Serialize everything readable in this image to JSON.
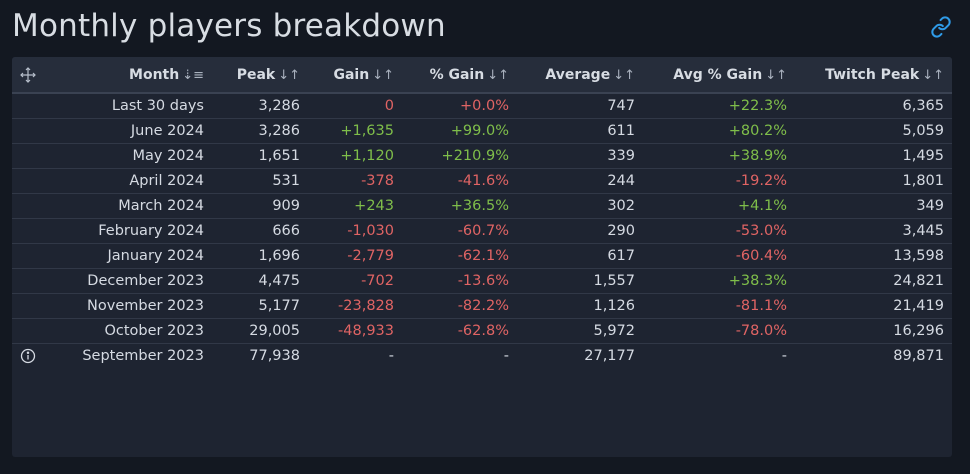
{
  "title": "Monthly players breakdown",
  "icons": {
    "link": "link-icon",
    "move": "move-icon",
    "info": "info-icon"
  },
  "colors": {
    "positive": "#7fbe4a",
    "negative": "#e06464",
    "link": "#2f9be8"
  },
  "table": {
    "headers": {
      "month": "Month",
      "peak": "Peak",
      "gain": "Gain",
      "pct_gain": "% Gain",
      "average": "Average",
      "avg_pct_gain": "Avg % Gain",
      "twitch_peak": "Twitch Peak"
    },
    "sort_glyphs": {
      "active": "⇣≡",
      "inactive": "↓↑"
    },
    "rows": [
      {
        "month": "Last 30 days",
        "peak": "3,286",
        "gain": "0",
        "gain_tone": "neg",
        "pct_gain": "+0.0%",
        "pct_tone": "neg",
        "average": "747",
        "avg_pct_gain": "+22.3%",
        "avg_tone": "pos",
        "twitch_peak": "6,365"
      },
      {
        "month": "June 2024",
        "peak": "3,286",
        "gain": "+1,635",
        "gain_tone": "pos",
        "pct_gain": "+99.0%",
        "pct_tone": "pos",
        "average": "611",
        "avg_pct_gain": "+80.2%",
        "avg_tone": "pos",
        "twitch_peak": "5,059"
      },
      {
        "month": "May 2024",
        "peak": "1,651",
        "gain": "+1,120",
        "gain_tone": "pos",
        "pct_gain": "+210.9%",
        "pct_tone": "pos",
        "average": "339",
        "avg_pct_gain": "+38.9%",
        "avg_tone": "pos",
        "twitch_peak": "1,495"
      },
      {
        "month": "April 2024",
        "peak": "531",
        "gain": "-378",
        "gain_tone": "neg",
        "pct_gain": "-41.6%",
        "pct_tone": "neg",
        "average": "244",
        "avg_pct_gain": "-19.2%",
        "avg_tone": "neg",
        "twitch_peak": "1,801"
      },
      {
        "month": "March 2024",
        "peak": "909",
        "gain": "+243",
        "gain_tone": "pos",
        "pct_gain": "+36.5%",
        "pct_tone": "pos",
        "average": "302",
        "avg_pct_gain": "+4.1%",
        "avg_tone": "pos",
        "twitch_peak": "349"
      },
      {
        "month": "February 2024",
        "peak": "666",
        "gain": "-1,030",
        "gain_tone": "neg",
        "pct_gain": "-60.7%",
        "pct_tone": "neg",
        "average": "290",
        "avg_pct_gain": "-53.0%",
        "avg_tone": "neg",
        "twitch_peak": "3,445"
      },
      {
        "month": "January 2024",
        "peak": "1,696",
        "gain": "-2,779",
        "gain_tone": "neg",
        "pct_gain": "-62.1%",
        "pct_tone": "neg",
        "average": "617",
        "avg_pct_gain": "-60.4%",
        "avg_tone": "neg",
        "twitch_peak": "13,598"
      },
      {
        "month": "December 2023",
        "peak": "4,475",
        "gain": "-702",
        "gain_tone": "neg",
        "pct_gain": "-13.6%",
        "pct_tone": "neg",
        "average": "1,557",
        "avg_pct_gain": "+38.3%",
        "avg_tone": "pos",
        "twitch_peak": "24,821"
      },
      {
        "month": "November 2023",
        "peak": "5,177",
        "gain": "-23,828",
        "gain_tone": "neg",
        "pct_gain": "-82.2%",
        "pct_tone": "neg",
        "average": "1,126",
        "avg_pct_gain": "-81.1%",
        "avg_tone": "neg",
        "twitch_peak": "21,419"
      },
      {
        "month": "October 2023",
        "peak": "29,005",
        "gain": "-48,933",
        "gain_tone": "neg",
        "pct_gain": "-62.8%",
        "pct_tone": "neg",
        "average": "5,972",
        "avg_pct_gain": "-78.0%",
        "avg_tone": "neg",
        "twitch_peak": "16,296"
      },
      {
        "month": "September 2023",
        "peak": "77,938",
        "gain": "-",
        "gain_tone": "plain",
        "pct_gain": "-",
        "pct_tone": "plain",
        "average": "27,177",
        "avg_pct_gain": "-",
        "avg_tone": "plain",
        "twitch_peak": "89,871"
      }
    ]
  }
}
